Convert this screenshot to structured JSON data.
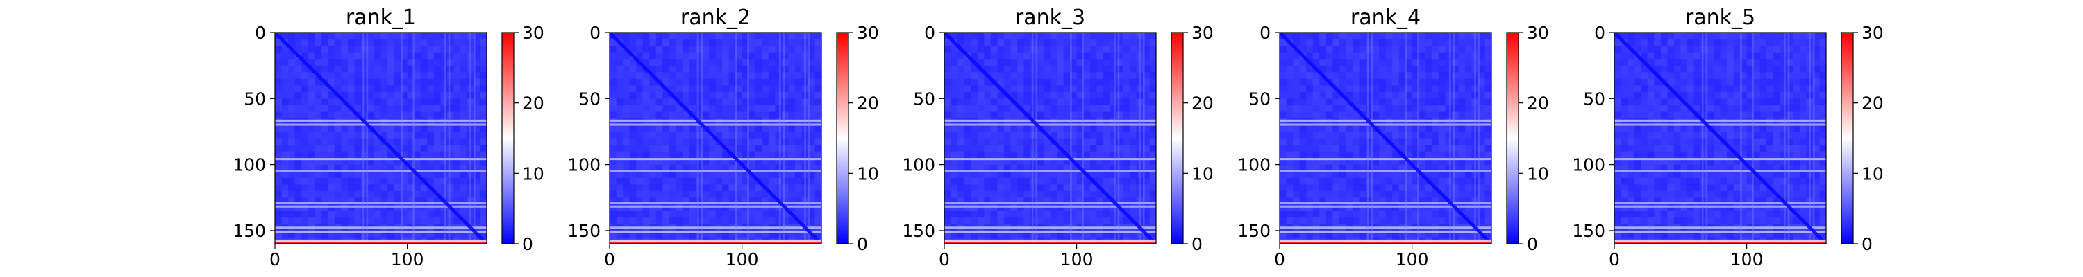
{
  "figure": {
    "background": "#ffffff"
  },
  "colormap": {
    "name": "bwr",
    "low": "#0000ff",
    "mid": "#ffffff",
    "high": "#ff0000"
  },
  "chart_data": [
    {
      "type": "heatmap",
      "title": "rank_1",
      "size": 160,
      "xlim": [
        0,
        160
      ],
      "ylim": [
        160,
        0
      ],
      "xticks": [
        0,
        100
      ],
      "yticks": [
        0,
        50,
        100,
        150
      ],
      "colorbar": {
        "range": [
          0,
          30
        ],
        "ticks": [
          0,
          10,
          20,
          30
        ]
      },
      "typical_value": 3,
      "diagonal_value": 0.5,
      "bright_rows": [
        66,
        69,
        95,
        104,
        128,
        131,
        147,
        150
      ],
      "bright_row_value": 11,
      "last_row_value": 28,
      "grid": false,
      "legend": "colorbar-right"
    },
    {
      "type": "heatmap",
      "title": "rank_2",
      "size": 160,
      "xlim": [
        0,
        160
      ],
      "ylim": [
        160,
        0
      ],
      "xticks": [
        0,
        100
      ],
      "yticks": [
        0,
        50,
        100,
        150
      ],
      "colorbar": {
        "range": [
          0,
          30
        ],
        "ticks": [
          0,
          10,
          20,
          30
        ]
      },
      "typical_value": 3,
      "diagonal_value": 0.5,
      "bright_rows": [
        66,
        69,
        95,
        104,
        128,
        131,
        147,
        150
      ],
      "bright_row_value": 11,
      "last_row_value": 28,
      "grid": false,
      "legend": "colorbar-right"
    },
    {
      "type": "heatmap",
      "title": "rank_3",
      "size": 160,
      "xlim": [
        0,
        160
      ],
      "ylim": [
        160,
        0
      ],
      "xticks": [
        0,
        100
      ],
      "yticks": [
        0,
        50,
        100,
        150
      ],
      "colorbar": {
        "range": [
          0,
          30
        ],
        "ticks": [
          0,
          10,
          20,
          30
        ]
      },
      "typical_value": 3,
      "diagonal_value": 0.5,
      "bright_rows": [
        66,
        69,
        95,
        104,
        128,
        131,
        147,
        150
      ],
      "bright_row_value": 11,
      "last_row_value": 28,
      "grid": false,
      "legend": "colorbar-right"
    },
    {
      "type": "heatmap",
      "title": "rank_4",
      "size": 160,
      "xlim": [
        0,
        160
      ],
      "ylim": [
        160,
        0
      ],
      "xticks": [
        0,
        100
      ],
      "yticks": [
        0,
        50,
        100,
        150
      ],
      "colorbar": {
        "range": [
          0,
          30
        ],
        "ticks": [
          0,
          10,
          20,
          30
        ]
      },
      "typical_value": 3,
      "diagonal_value": 0.5,
      "bright_rows": [
        66,
        69,
        95,
        104,
        128,
        131,
        147,
        150
      ],
      "bright_row_value": 11,
      "last_row_value": 28,
      "grid": false,
      "legend": "colorbar-right"
    },
    {
      "type": "heatmap",
      "title": "rank_5",
      "size": 160,
      "xlim": [
        0,
        160
      ],
      "ylim": [
        160,
        0
      ],
      "xticks": [
        0,
        100
      ],
      "yticks": [
        0,
        50,
        100,
        150
      ],
      "colorbar": {
        "range": [
          0,
          30
        ],
        "ticks": [
          0,
          10,
          20,
          30
        ]
      },
      "typical_value": 3,
      "diagonal_value": 0.5,
      "bright_rows": [
        66,
        69,
        95,
        104,
        128,
        131,
        147,
        150
      ],
      "bright_row_value": 11,
      "last_row_value": 28,
      "grid": false,
      "legend": "colorbar-right"
    }
  ]
}
